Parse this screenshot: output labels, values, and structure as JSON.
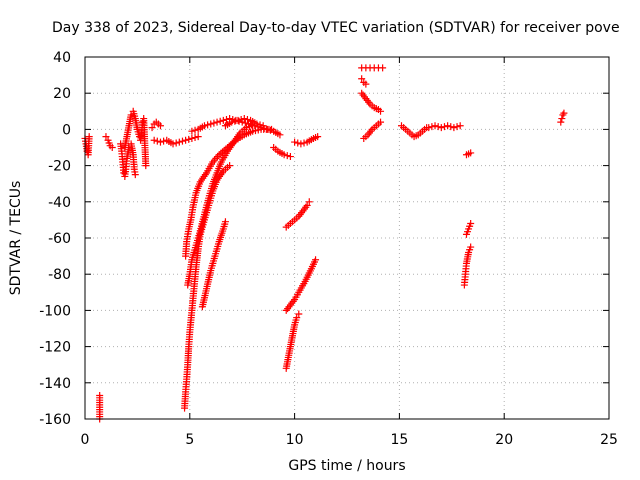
{
  "chart_data": {
    "type": "scatter",
    "title": "Day 338 of 2023, Sidereal Day-to-day VTEC variation (SDTVAR) for receiver pove",
    "xlabel": "GPS time / hours",
    "ylabel": "SDTVAR / TECUs",
    "xlim": [
      0,
      25
    ],
    "ylim": [
      -160,
      40
    ],
    "x_ticks": [
      0,
      5,
      10,
      15,
      20,
      25
    ],
    "y_ticks": [
      -160,
      -140,
      -120,
      -100,
      -80,
      -60,
      -40,
      -20,
      0,
      20,
      40
    ],
    "grid": true,
    "marker": "+",
    "marker_color": "#ff0000",
    "series": [
      {
        "segments": [
          [
            [
              0.0,
              -5
            ],
            [
              0.05,
              -8
            ],
            [
              0.1,
              -12
            ],
            [
              0.15,
              -14
            ],
            [
              0.2,
              -4
            ]
          ],
          [
            [
              0.7,
              -160
            ],
            [
              0.7,
              -147
            ]
          ],
          [
            [
              1.0,
              -4
            ],
            [
              1.1,
              -6
            ],
            [
              1.2,
              -9
            ],
            [
              1.3,
              -10
            ]
          ],
          [
            [
              1.7,
              -8
            ],
            [
              1.75,
              -12
            ],
            [
              1.8,
              -18
            ],
            [
              1.85,
              -24
            ],
            [
              1.9,
              -26
            ],
            [
              1.95,
              -22
            ],
            [
              2.0,
              -16
            ],
            [
              2.1,
              -10
            ],
            [
              2.2,
              -8
            ],
            [
              2.3,
              -14
            ],
            [
              2.35,
              -22
            ],
            [
              2.4,
              -25
            ]
          ],
          [
            [
              1.9,
              -10
            ],
            [
              2.0,
              -4
            ],
            [
              2.1,
              2
            ],
            [
              2.2,
              8
            ],
            [
              2.3,
              10
            ],
            [
              2.4,
              6
            ],
            [
              2.5,
              0
            ],
            [
              2.6,
              -4
            ]
          ],
          [
            [
              2.65,
              -6
            ],
            [
              2.7,
              -2
            ],
            [
              2.75,
              4
            ],
            [
              2.8,
              6
            ],
            [
              2.9,
              -20
            ]
          ],
          [
            [
              3.2,
              1
            ],
            [
              3.3,
              3
            ],
            [
              3.4,
              4
            ],
            [
              3.5,
              3
            ],
            [
              3.6,
              2
            ]
          ],
          [
            [
              3.3,
              -6
            ],
            [
              3.6,
              -7
            ],
            [
              3.9,
              -6
            ],
            [
              4.2,
              -8
            ],
            [
              4.5,
              -7
            ],
            [
              4.8,
              -6
            ],
            [
              5.1,
              -5
            ],
            [
              5.4,
              -4
            ]
          ],
          [
            [
              4.75,
              -154
            ],
            [
              4.8,
              -145
            ],
            [
              4.85,
              -138
            ],
            [
              4.9,
              -130
            ],
            [
              4.95,
              -120
            ],
            [
              5.0,
              -112
            ],
            [
              5.1,
              -100
            ],
            [
              5.2,
              -88
            ],
            [
              5.3,
              -76
            ],
            [
              5.4,
              -66
            ],
            [
              5.5,
              -58
            ],
            [
              5.7,
              -50
            ],
            [
              5.9,
              -42
            ],
            [
              6.1,
              -34
            ],
            [
              6.3,
              -28
            ],
            [
              6.6,
              -23
            ],
            [
              6.9,
              -20
            ]
          ],
          [
            [
              4.8,
              -70
            ],
            [
              4.85,
              -62
            ],
            [
              4.95,
              -55
            ],
            [
              5.05,
              -50
            ],
            [
              5.15,
              -43
            ],
            [
              5.3,
              -35
            ],
            [
              5.5,
              -29
            ],
            [
              5.8,
              -24
            ],
            [
              6.1,
              -18
            ],
            [
              6.4,
              -14
            ],
            [
              6.8,
              -10
            ],
            [
              7.2,
              -6
            ],
            [
              7.6,
              -3
            ],
            [
              8.0,
              -1
            ],
            [
              8.4,
              0
            ],
            [
              8.9,
              0
            ]
          ],
          [
            [
              4.9,
              -86
            ],
            [
              5.0,
              -80
            ],
            [
              5.1,
              -72
            ],
            [
              5.3,
              -64
            ],
            [
              5.5,
              -56
            ],
            [
              5.7,
              -47
            ],
            [
              5.9,
              -38
            ],
            [
              6.1,
              -30
            ],
            [
              6.3,
              -24
            ],
            [
              6.5,
              -18
            ],
            [
              6.8,
              -12
            ],
            [
              7.1,
              -7
            ],
            [
              7.4,
              -2
            ],
            [
              7.7,
              1
            ],
            [
              8.0,
              2
            ]
          ],
          [
            [
              5.1,
              -1
            ],
            [
              5.4,
              0
            ],
            [
              5.7,
              2
            ],
            [
              6.0,
              3
            ],
            [
              6.3,
              4
            ],
            [
              6.6,
              5
            ],
            [
              6.9,
              6
            ],
            [
              7.2,
              5
            ],
            [
              7.5,
              4
            ],
            [
              7.8,
              3
            ],
            [
              8.1,
              2
            ],
            [
              8.4,
              1
            ],
            [
              8.7,
              0
            ],
            [
              9.0,
              -1
            ],
            [
              9.3,
              -3
            ]
          ],
          [
            [
              6.7,
              2
            ],
            [
              7.0,
              4
            ],
            [
              7.3,
              5
            ],
            [
              7.6,
              6
            ],
            [
              7.9,
              5
            ],
            [
              8.2,
              3
            ],
            [
              8.5,
              2
            ]
          ],
          [
            [
              5.6,
              -98
            ],
            [
              5.8,
              -88
            ],
            [
              6.0,
              -78
            ],
            [
              6.2,
              -70
            ],
            [
              6.4,
              -62
            ],
            [
              6.6,
              -55
            ],
            [
              6.7,
              -51
            ]
          ],
          [
            [
              9.0,
              -10
            ],
            [
              9.2,
              -12
            ],
            [
              9.5,
              -14
            ],
            [
              9.8,
              -15
            ]
          ],
          [
            [
              9.6,
              -54
            ],
            [
              9.8,
              -52
            ],
            [
              10.0,
              -50
            ],
            [
              10.2,
              -48
            ],
            [
              10.4,
              -45
            ],
            [
              10.6,
              -42
            ],
            [
              10.7,
              -40
            ]
          ],
          [
            [
              9.6,
              -100
            ],
            [
              9.8,
              -97
            ],
            [
              10.0,
              -94
            ],
            [
              10.2,
              -90
            ],
            [
              10.5,
              -84
            ],
            [
              10.8,
              -77
            ],
            [
              11.0,
              -72
            ]
          ],
          [
            [
              9.6,
              -132
            ],
            [
              9.7,
              -126
            ],
            [
              9.8,
              -120
            ],
            [
              9.9,
              -114
            ],
            [
              10.0,
              -108
            ],
            [
              10.1,
              -104
            ],
            [
              10.2,
              -102
            ]
          ],
          [
            [
              10.0,
              -7
            ],
            [
              10.3,
              -8
            ],
            [
              10.6,
              -7
            ],
            [
              10.9,
              -5
            ],
            [
              11.1,
              -4
            ]
          ],
          [
            [
              13.2,
              34
            ],
            [
              13.4,
              34
            ],
            [
              13.6,
              34
            ],
            [
              13.8,
              34
            ],
            [
              14.0,
              34
            ],
            [
              14.2,
              34
            ]
          ],
          [
            [
              13.2,
              28
            ],
            [
              13.3,
              26
            ],
            [
              13.4,
              25
            ]
          ],
          [
            [
              13.2,
              20
            ],
            [
              13.4,
              17
            ],
            [
              13.6,
              14
            ],
            [
              13.8,
              12
            ],
            [
              14.0,
              11
            ],
            [
              14.1,
              10
            ]
          ],
          [
            [
              13.3,
              -5
            ],
            [
              13.5,
              -3
            ],
            [
              13.7,
              0
            ],
            [
              13.9,
              2
            ],
            [
              14.1,
              4
            ]
          ],
          [
            [
              15.1,
              2
            ],
            [
              15.3,
              0
            ],
            [
              15.5,
              -2
            ],
            [
              15.7,
              -4
            ],
            [
              15.9,
              -3
            ],
            [
              16.1,
              -1
            ],
            [
              16.3,
              1
            ]
          ],
          [
            [
              16.4,
              1
            ],
            [
              16.7,
              2
            ],
            [
              17.0,
              1
            ],
            [
              17.3,
              2
            ],
            [
              17.6,
              1
            ],
            [
              17.9,
              2
            ]
          ],
          [
            [
              18.1,
              -86
            ],
            [
              18.15,
              -80
            ],
            [
              18.2,
              -74
            ],
            [
              18.3,
              -68
            ],
            [
              18.4,
              -65
            ]
          ],
          [
            [
              18.2,
              -58
            ],
            [
              18.3,
              -55
            ],
            [
              18.4,
              -52
            ]
          ],
          [
            [
              18.2,
              -14
            ],
            [
              18.4,
              -13
            ]
          ],
          [
            [
              22.7,
              4
            ],
            [
              22.75,
              6
            ],
            [
              22.8,
              8
            ],
            [
              22.85,
              9
            ]
          ]
        ]
      }
    ]
  }
}
